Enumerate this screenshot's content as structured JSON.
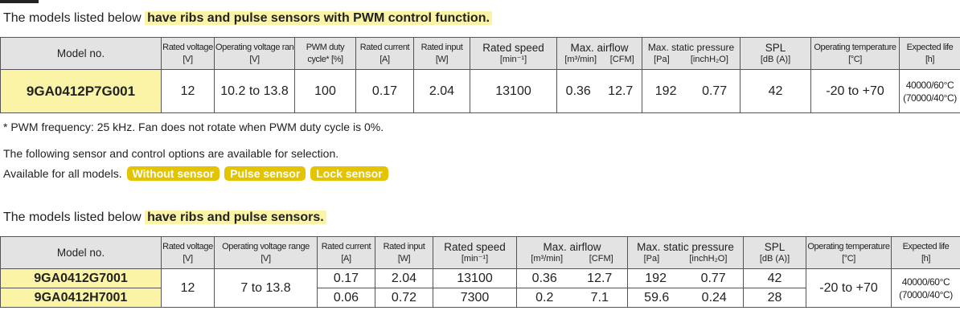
{
  "section1": {
    "intro": "The models listed below",
    "highlight": "have ribs and pulse sensors with PWM control function."
  },
  "table1": {
    "headers": {
      "model": "Model no.",
      "rated_voltage": "Rated voltage",
      "rated_voltage_unit": "[V]",
      "op_voltage": "Operating voltage range",
      "op_voltage_unit": "[V]",
      "pwm": "PWM duty",
      "pwm_unit": "cycle* [%]",
      "current": "Rated current",
      "current_unit": "[A]",
      "input": "Rated input",
      "input_unit": "[W]",
      "speed": "Rated speed",
      "speed_unit": "[min⁻¹]",
      "airflow": "Max. airflow",
      "airflow_unit1": "[m³/min]",
      "airflow_unit2": "[CFM]",
      "pressure": "Max. static pressure",
      "pressure_unit1": "[Pa]",
      "pressure_unit2": "[inchH₂O]",
      "spl": "SPL",
      "spl_unit": "[dB (A)]",
      "temp": "Operating temperature",
      "temp_unit": "[°C]",
      "life": "Expected life",
      "life_unit": "[h]"
    },
    "row": {
      "model": "9GA0412P7G001",
      "rated_voltage": "12",
      "op_voltage": "10.2 to 13.8",
      "pwm": "100",
      "current": "0.17",
      "input": "2.04",
      "speed": "13100",
      "airflow_m3": "0.36",
      "airflow_cfm": "12.7",
      "pressure_pa": "192",
      "pressure_inch": "0.77",
      "spl": "42",
      "temp": "-20 to +70",
      "life1": "40000/60°C",
      "life2": "(70000/40°C)"
    }
  },
  "note_pwm": "* PWM frequency: 25 kHz. Fan does not rotate when PWM duty cycle is 0%.",
  "options_text": "The following sensor and control options are available for selection.",
  "available_text": "Available for all models.",
  "options": [
    "Without sensor",
    "Pulse sensor",
    "Lock sensor"
  ],
  "section2": {
    "intro": "The models listed below",
    "highlight": "have ribs and pulse sensors."
  },
  "table2": {
    "headers": {
      "model": "Model no.",
      "rated_voltage": "Rated voltage",
      "rated_voltage_unit": "[V]",
      "op_voltage": "Operating voltage range",
      "op_voltage_unit": "[V]",
      "current": "Rated current",
      "current_unit": "[A]",
      "input": "Rated input",
      "input_unit": "[W]",
      "speed": "Rated speed",
      "speed_unit": "[min⁻¹]",
      "airflow": "Max. airflow",
      "airflow_unit1": "[m³/min]",
      "airflow_unit2": "[CFM]",
      "pressure": "Max. static pressure",
      "pressure_unit1": "[Pa]",
      "pressure_unit2": "[inchH₂O]",
      "spl": "SPL",
      "spl_unit": "[dB (A)]",
      "temp": "Operating temperature",
      "temp_unit": "[°C]",
      "life": "Expected life",
      "life_unit": "[h]"
    },
    "shared": {
      "rated_voltage": "12",
      "op_voltage": "7 to 13.8",
      "temp": "-20 to +70",
      "life1": "40000/60°C",
      "life2": "(70000/40°C)"
    },
    "rows": [
      {
        "model": "9GA0412G7001",
        "current": "0.17",
        "input": "2.04",
        "speed": "13100",
        "airflow_m3": "0.36",
        "airflow_cfm": "12.7",
        "pressure_pa": "192",
        "pressure_inch": "0.77",
        "spl": "42"
      },
      {
        "model": "9GA0412H7001",
        "current": "0.06",
        "input": "0.72",
        "speed": "7300",
        "airflow_m3": "0.2",
        "airflow_cfm": "7.1",
        "pressure_pa": "59.6",
        "pressure_inch": "0.24",
        "spl": "28"
      }
    ]
  }
}
